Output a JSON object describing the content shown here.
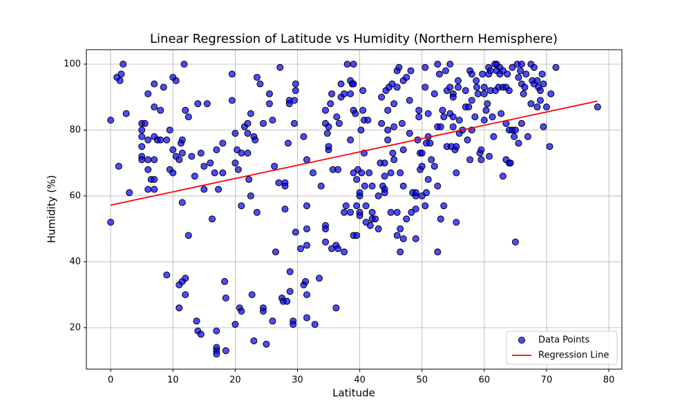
{
  "chart_data": {
    "type": "scatter",
    "title": "Linear Regression of Latitude vs Humidity (Northern Hemisphere)",
    "xlabel": "Latitude",
    "ylabel": "Humidity (%)",
    "xlim": [
      -3.9,
      82.1
    ],
    "ylim": [
      7.4,
      104.4
    ],
    "xticks": [
      0,
      10,
      20,
      30,
      40,
      50,
      60,
      70,
      80
    ],
    "yticks": [
      20,
      40,
      60,
      80,
      100
    ],
    "grid": true,
    "legend": "lower right",
    "series": [
      {
        "name": "Data Points",
        "type": "scatter",
        "color": "#0000ff",
        "x": [
          0,
          0,
          1,
          1.3,
          1.5,
          1.7,
          2,
          2.5,
          3,
          5,
          5,
          5,
          5,
          5,
          5,
          5.5,
          6,
          6,
          6,
          6,
          6,
          6.5,
          7,
          7,
          7,
          7,
          7,
          7,
          7.5,
          8,
          8,
          8.5,
          9,
          9,
          9.5,
          9.5,
          10,
          10,
          10,
          10.5,
          10.5,
          11,
          11,
          11,
          11.3,
          11.5,
          11.5,
          11.5,
          11.5,
          11.8,
          12,
          12,
          12,
          12.5,
          12.5,
          13,
          13.5,
          13.8,
          14,
          14,
          14.5,
          14.5,
          15,
          15,
          15.5,
          16,
          16.3,
          16.7,
          17,
          17,
          17,
          17,
          17,
          17.3,
          18,
          18,
          18.3,
          18.5,
          18.5,
          19.5,
          19.5,
          20,
          20,
          20,
          20.3,
          20.5,
          20.7,
          21,
          21,
          21,
          21.5,
          22,
          22,
          22,
          22.2,
          22.5,
          22.5,
          22.7,
          23,
          23,
          23.2,
          23.5,
          23.5,
          24,
          24.5,
          24.5,
          24.5,
          25,
          25.5,
          25.5,
          26,
          26,
          26.3,
          26.5,
          27,
          27.2,
          27.5,
          27.7,
          28,
          28,
          28,
          28.3,
          28.5,
          28.7,
          28.7,
          28.8,
          28.8,
          29.3,
          29.3,
          29.5,
          29.5,
          29.7,
          29.7,
          29.7,
          30.5,
          31,
          31,
          31.3,
          31.5,
          31.5,
          31.5,
          31.5,
          31.5,
          31.5,
          32.5,
          32.8,
          33.5,
          33.8,
          34.5,
          34.5,
          34.5,
          34.5,
          34.5,
          34.8,
          35,
          35,
          35,
          35.3,
          35.5,
          35.5,
          35.7,
          36.2,
          36.2,
          36.3,
          36.5,
          36.5,
          36.7,
          37,
          37,
          37.5,
          37.5,
          37.5,
          37.8,
          38,
          38.5,
          38.5,
          38.5,
          38.5,
          38.8,
          39,
          39,
          39,
          39,
          39,
          39.3,
          39.5,
          39.5,
          39.5,
          39.7,
          40,
          40,
          40,
          40,
          40.2,
          40.3,
          40.5,
          40.5,
          40.7,
          40.7,
          40.8,
          41,
          41,
          41.3,
          41.5,
          41.7,
          42,
          42,
          42,
          42.5,
          43,
          43,
          43.3,
          43.5,
          43.5,
          43.7,
          44,
          44,
          44,
          44,
          44.2,
          44.5,
          44.5,
          44.5,
          44.7,
          45,
          45,
          45.2,
          45.3,
          45.5,
          45.5,
          45.5,
          46,
          46,
          46,
          46,
          46.3,
          46.5,
          46.5,
          46.5,
          46.8,
          47,
          47,
          47,
          47,
          47.5,
          47.5,
          48,
          48,
          48.2,
          48.3,
          48.5,
          49,
          49,
          49,
          49,
          49.3,
          49.5,
          49.5,
          49.7,
          49.7,
          50,
          50,
          50,
          50.5,
          50.5,
          50.5,
          50.7,
          50.7,
          51,
          51,
          51,
          51.3,
          51.5,
          52,
          52,
          52.5,
          52.5,
          52.5,
          52.5,
          52.8,
          53,
          53,
          53.3,
          53.5,
          53.5,
          53.8,
          54,
          54,
          54.5,
          54.5,
          54.5,
          54.7,
          55,
          55,
          55,
          55,
          55.3,
          55.5,
          55.5,
          55.5,
          55.8,
          55.8,
          56,
          56,
          56.5,
          57,
          57,
          57.3,
          57.5,
          57.7,
          57.7,
          58,
          58,
          58,
          58.5,
          58.7,
          58.8,
          59,
          59.3,
          59.5,
          59.5,
          59.7,
          60,
          60,
          60,
          60.3,
          60.5,
          60.7,
          60.7,
          60.8,
          61,
          61,
          61.3,
          61.5,
          61.7,
          61.8,
          62,
          62,
          62.3,
          62.5,
          62.5,
          62.7,
          63,
          63,
          63,
          63.5,
          63.5,
          63.5,
          63.7,
          64,
          64,
          64.2,
          64,
          64.5,
          64.5,
          64.8,
          65,
          65,
          65.3,
          65.5,
          65.5,
          65.8,
          66,
          66,
          66,
          66.3,
          66.5,
          66.7,
          67,
          67.5,
          67.5,
          67.7,
          68,
          68,
          68.5,
          68.5,
          68.7,
          69,
          69,
          69.3,
          69.5,
          69.5,
          70,
          70.5,
          70.7,
          71.5,
          78.2
        ],
        "values": [
          83,
          52,
          96,
          69,
          95,
          97,
          100,
          85,
          61,
          82,
          80,
          78,
          75,
          72,
          71,
          82,
          91,
          71,
          68,
          62,
          77,
          65,
          94,
          87,
          78,
          71,
          65,
          62,
          77,
          86,
          77,
          93,
          77,
          36,
          80,
          68,
          96,
          74,
          67,
          95,
          72,
          71,
          33,
          26,
          76,
          77,
          73,
          58,
          34,
          100,
          86,
          35,
          30,
          84,
          48,
          72,
          66,
          22,
          19,
          88,
          73,
          18,
          69,
          62,
          88,
          70,
          53,
          67,
          74,
          14,
          13,
          12,
          19,
          62,
          76,
          67,
          34,
          13,
          29,
          97,
          89,
          79,
          70,
          21,
          74,
          68,
          26,
          73,
          57,
          25,
          81,
          82,
          79,
          73,
          65,
          85,
          60,
          30,
          16,
          78,
          77,
          55,
          96,
          94,
          26,
          25,
          82,
          15,
          91,
          88,
          83,
          22,
          69,
          43,
          64,
          99,
          29,
          28,
          64,
          63,
          56,
          28,
          76,
          89,
          88,
          37,
          31,
          22,
          21,
          82,
          89,
          94,
          92,
          49,
          44,
          78,
          33,
          34,
          71,
          57,
          50,
          45,
          23,
          30,
          67,
          21,
          35,
          63,
          86,
          82,
          51,
          50,
          46,
          79,
          74,
          75,
          81,
          88,
          91,
          44,
          68,
          26,
          45,
          84,
          68,
          44,
          82,
          94,
          90,
          91,
          55,
          43,
          57,
          100,
          95,
          91,
          77,
          55,
          94,
          100,
          94,
          86,
          67,
          48,
          85,
          65,
          57,
          48,
          68,
          60,
          55,
          54,
          61,
          80,
          67,
          86,
          92,
          83,
          73,
          63,
          52,
          57,
          83,
          67,
          51,
          55,
          63,
          53,
          53,
          60,
          50,
          70,
          90,
          82,
          63,
          70,
          66,
          62,
          61,
          92,
          80,
          77,
          86,
          93,
          67,
          55,
          94,
          73,
          81,
          71,
          88,
          98,
          93,
          55,
          48,
          99,
          67,
          50,
          43,
          82,
          95,
          74,
          63,
          47,
          96,
          53,
          89,
          79,
          98,
          55,
          61,
          60,
          61,
          56,
          47,
          77,
          86,
          84,
          73,
          68,
          69,
          60,
          73,
          93,
          99,
          57,
          76,
          61,
          78,
          65,
          85,
          76,
          71,
          69,
          91,
          81,
          100,
          63,
          43,
          97,
          81,
          53,
          86,
          84,
          57,
          98,
          75,
          92,
          93,
          85,
          100,
          75,
          91,
          90,
          84,
          81,
          74,
          67,
          75,
          52,
          95,
          93,
          83,
          79,
          80,
          92,
          87,
          77,
          87,
          98,
          71,
          89,
          80,
          97,
          84,
          95,
          93,
          91,
          73,
          74,
          71,
          97,
          83,
          93,
          91,
          86,
          88,
          97,
          99,
          72,
          92,
          98,
          84,
          78,
          100,
          92,
          98,
          100,
          93,
          99,
          97,
          85,
          93,
          98,
          66,
          93,
          82,
          71,
          97,
          92,
          70,
          70,
          80,
          80,
          99,
          78,
          80,
          46,
          100,
          96,
          76,
          98,
          100,
          94,
          82,
          91,
          93,
          97,
          78,
          88,
          100,
          95,
          99,
          94,
          95,
          87,
          93,
          92,
          89,
          97,
          94,
          81,
          87,
          75,
          91,
          99,
          87
        ]
      },
      {
        "name": "Regression Line",
        "type": "line",
        "color": "#ff0000",
        "x": [
          0,
          78.2
        ],
        "values": [
          57.2,
          88.8
        ]
      }
    ]
  }
}
